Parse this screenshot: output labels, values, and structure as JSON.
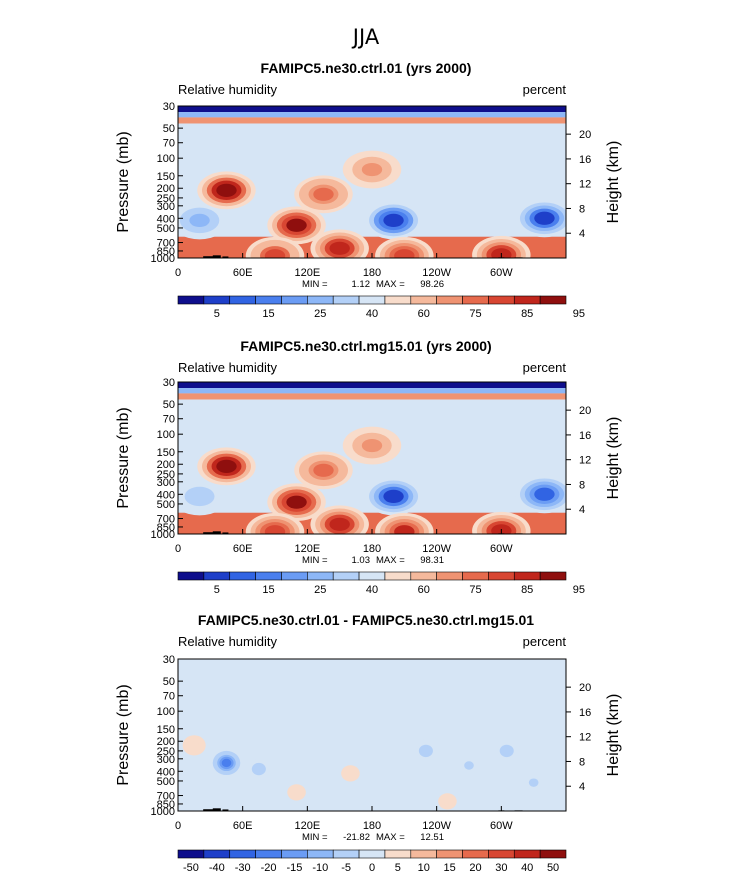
{
  "figure_title": "JJA",
  "chart_data": [
    {
      "type": "heatmap",
      "title": "FAMIPC5.ne30.ctrl.01 (yrs 2000)",
      "left_subtitle": "Relative humidity",
      "right_subtitle": "percent",
      "ylabel": "Pressure (mb)",
      "ylabel_right": "Height (km)",
      "x_ticks": [
        "0",
        "60E",
        "120E",
        "180",
        "120W",
        "60W"
      ],
      "y_ticks": [
        "30",
        "50",
        "70",
        "100",
        "150",
        "200",
        "250",
        "300",
        "400",
        "500",
        "700",
        "850",
        "1000"
      ],
      "y_ticks_right": [
        "20",
        "16",
        "12",
        "8",
        "4"
      ],
      "min_label": "MIN =",
      "min_value": "1.12",
      "max_label": "MAX =",
      "max_value": "98.26",
      "levels": [
        5,
        10,
        15,
        20,
        25,
        30,
        40,
        50,
        60,
        70,
        75,
        80,
        85,
        90,
        95
      ],
      "colorbar_labels": [
        "5",
        "15",
        "25",
        "40",
        "60",
        "75",
        "85",
        "95"
      ],
      "features": [
        {
          "lon": 200,
          "p": 420,
          "value": 8
        },
        {
          "lon": 340,
          "p": 400,
          "value": 10
        },
        {
          "lon": 20,
          "p": 420,
          "value": 30
        },
        {
          "lon": 45,
          "p": 210,
          "value": 95
        },
        {
          "lon": 110,
          "p": 470,
          "value": 92
        },
        {
          "lon": 150,
          "p": 800,
          "value": 88
        },
        {
          "lon": 90,
          "p": 950,
          "value": 82
        },
        {
          "lon": 210,
          "p": 950,
          "value": 85
        },
        {
          "lon": 300,
          "p": 930,
          "value": 90
        },
        {
          "lon": 135,
          "p": 230,
          "value": 78
        },
        {
          "lon": 180,
          "p": 130,
          "value": 75
        }
      ]
    },
    {
      "type": "heatmap",
      "title": "FAMIPC5.ne30.ctrl.mg15.01 (yrs 2000)",
      "left_subtitle": "Relative humidity",
      "right_subtitle": "percent",
      "ylabel": "Pressure (mb)",
      "ylabel_right": "Height (km)",
      "x_ticks": [
        "0",
        "60E",
        "120E",
        "180",
        "120W",
        "60W"
      ],
      "y_ticks": [
        "30",
        "50",
        "70",
        "100",
        "150",
        "200",
        "250",
        "300",
        "400",
        "500",
        "700",
        "850",
        "1000"
      ],
      "y_ticks_right": [
        "20",
        "16",
        "12",
        "8",
        "4"
      ],
      "min_label": "MIN =",
      "min_value": "1.03",
      "max_label": "MAX =",
      "max_value": "98.31",
      "levels": [
        5,
        10,
        15,
        20,
        25,
        30,
        40,
        50,
        60,
        70,
        75,
        80,
        85,
        90,
        95
      ],
      "colorbar_labels": [
        "5",
        "15",
        "25",
        "40",
        "60",
        "75",
        "85",
        "95"
      ],
      "features": [
        {
          "lon": 200,
          "p": 420,
          "value": 10
        },
        {
          "lon": 340,
          "p": 400,
          "value": 14
        },
        {
          "lon": 20,
          "p": 420,
          "value": 35
        },
        {
          "lon": 45,
          "p": 210,
          "value": 96
        },
        {
          "lon": 110,
          "p": 480,
          "value": 92
        },
        {
          "lon": 150,
          "p": 800,
          "value": 88
        },
        {
          "lon": 90,
          "p": 950,
          "value": 84
        },
        {
          "lon": 210,
          "p": 950,
          "value": 87
        },
        {
          "lon": 300,
          "p": 930,
          "value": 90
        },
        {
          "lon": 135,
          "p": 230,
          "value": 78
        },
        {
          "lon": 180,
          "p": 130,
          "value": 75
        }
      ]
    },
    {
      "type": "heatmap",
      "title": "FAMIPC5.ne30.ctrl.01 - FAMIPC5.ne30.ctrl.mg15.01",
      "left_subtitle": "Relative humidity",
      "right_subtitle": "percent",
      "ylabel": "Pressure (mb)",
      "ylabel_right": "Height (km)",
      "x_ticks": [
        "0",
        "60E",
        "120E",
        "180",
        "120W",
        "60W"
      ],
      "y_ticks": [
        "30",
        "50",
        "70",
        "100",
        "150",
        "200",
        "250",
        "300",
        "400",
        "500",
        "700",
        "850",
        "1000"
      ],
      "y_ticks_right": [
        "20",
        "16",
        "12",
        "8",
        "4"
      ],
      "min_label": "MIN =",
      "min_value": "-21.82",
      "max_label": "MAX =",
      "max_value": "12.51",
      "levels": [
        -50,
        -40,
        -30,
        -20,
        -15,
        -10,
        -5,
        0,
        5,
        10,
        15,
        20,
        30,
        40,
        50
      ],
      "colorbar_labels": [
        "-50",
        "-40",
        "-30",
        "-20",
        "-15",
        "-10",
        "-5",
        "0",
        "5",
        "10",
        "15",
        "20",
        "30",
        "40",
        "50"
      ],
      "features": [
        {
          "lon": 45,
          "p": 330,
          "value": -21
        },
        {
          "lon": 75,
          "p": 380,
          "value": -6
        },
        {
          "lon": 230,
          "p": 250,
          "value": -6
        },
        {
          "lon": 270,
          "p": 350,
          "value": -5
        },
        {
          "lon": 305,
          "p": 250,
          "value": -6
        },
        {
          "lon": 15,
          "p": 220,
          "value": 4
        },
        {
          "lon": 160,
          "p": 420,
          "value": 3
        },
        {
          "lon": 110,
          "p": 650,
          "value": 2
        },
        {
          "lon": 250,
          "p": 800,
          "value": 3
        },
        {
          "lon": 330,
          "p": 520,
          "value": -5
        }
      ]
    }
  ]
}
